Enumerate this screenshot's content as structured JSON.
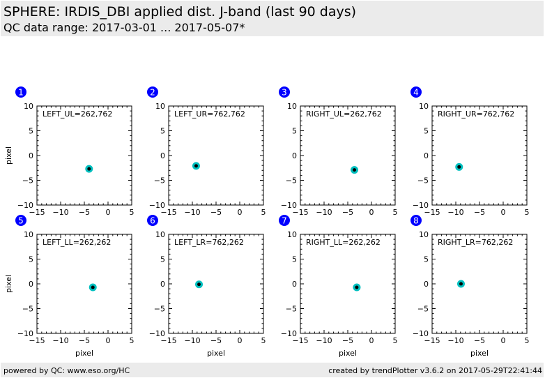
{
  "header": {
    "title": "SPHERE: IRDIS_DBI applied dist. J-band (last 90 days)",
    "subtitle": "QC data range: 2017-03-01 ... 2017-05-07*"
  },
  "footer": {
    "left": "powered by QC: www.eso.org/HC",
    "right": "created by trendPlotter v3.6.2 on 2017-05-29T22:41:44"
  },
  "colors": {
    "badge": "#0000ff",
    "marker_outer": "#00bfbf",
    "marker_inner": "#000000"
  },
  "chart_data": [
    {
      "type": "scatter",
      "badge": "1",
      "label": "LEFT_UL=262,762",
      "xlabel": "",
      "ylabel": "pixel",
      "xlim": [
        -15,
        5
      ],
      "ylim": [
        -10,
        10
      ],
      "xticks": [
        "−15",
        "−10",
        "−5",
        "0",
        "5"
      ],
      "yticks": [
        "10",
        "5",
        "0",
        "−5",
        "−10"
      ],
      "points": [
        [
          -4.0,
          -2.7
        ]
      ]
    },
    {
      "type": "scatter",
      "badge": "2",
      "label": "LEFT_UR=762,762",
      "xlabel": "",
      "ylabel": "",
      "xlim": [
        -15,
        5
      ],
      "ylim": [
        -10,
        10
      ],
      "xticks": [
        "−15",
        "−10",
        "−5",
        "0",
        "5"
      ],
      "yticks": [
        "10",
        "5",
        "0",
        "−5",
        "−10"
      ],
      "points": [
        [
          -9.2,
          -2.1
        ]
      ]
    },
    {
      "type": "scatter",
      "badge": "3",
      "label": "RIGHT_UL=262,762",
      "xlabel": "",
      "ylabel": "",
      "xlim": [
        -15,
        5
      ],
      "ylim": [
        -10,
        10
      ],
      "xticks": [
        "−15",
        "−10",
        "−5",
        "0",
        "5"
      ],
      "yticks": [
        "10",
        "5",
        "0",
        "−5",
        "−10"
      ],
      "points": [
        [
          -3.6,
          -2.9
        ]
      ]
    },
    {
      "type": "scatter",
      "badge": "4",
      "label": "RIGHT_UR=762,762",
      "xlabel": "",
      "ylabel": "",
      "xlim": [
        -15,
        5
      ],
      "ylim": [
        -10,
        10
      ],
      "xticks": [
        "−15",
        "−10",
        "−5",
        "0",
        "5"
      ],
      "yticks": [
        "10",
        "5",
        "0",
        "−5",
        "−10"
      ],
      "points": [
        [
          -9.3,
          -2.3
        ]
      ]
    },
    {
      "type": "scatter",
      "badge": "5",
      "label": "LEFT_LL=262,262",
      "xlabel": "pixel",
      "ylabel": "pixel",
      "xlim": [
        -15,
        5
      ],
      "ylim": [
        -10,
        10
      ],
      "xticks": [
        "−15",
        "−10",
        "−5",
        "0",
        "5"
      ],
      "yticks": [
        "10",
        "5",
        "0",
        "−5",
        "−10"
      ],
      "points": [
        [
          -3.2,
          -0.7
        ]
      ]
    },
    {
      "type": "scatter",
      "badge": "6",
      "label": "LEFT_LR=762,262",
      "xlabel": "pixel",
      "ylabel": "",
      "xlim": [
        -15,
        5
      ],
      "ylim": [
        -10,
        10
      ],
      "xticks": [
        "−15",
        "−10",
        "−5",
        "0",
        "5"
      ],
      "yticks": [
        "10",
        "5",
        "0",
        "−5",
        "−10"
      ],
      "points": [
        [
          -8.6,
          -0.1
        ]
      ]
    },
    {
      "type": "scatter",
      "badge": "7",
      "label": "RIGHT_LL=262,262",
      "xlabel": "pixel",
      "ylabel": "",
      "xlim": [
        -15,
        5
      ],
      "ylim": [
        -10,
        10
      ],
      "xticks": [
        "−15",
        "−10",
        "−5",
        "0",
        "5"
      ],
      "yticks": [
        "10",
        "5",
        "0",
        "−5",
        "−10"
      ],
      "points": [
        [
          -3.1,
          -0.7
        ]
      ]
    },
    {
      "type": "scatter",
      "badge": "8",
      "label": "RIGHT_LR=762,262",
      "xlabel": "pixel",
      "ylabel": "",
      "xlim": [
        -15,
        5
      ],
      "ylim": [
        -10,
        10
      ],
      "xticks": [
        "−15",
        "−10",
        "−5",
        "0",
        "5"
      ],
      "yticks": [
        "10",
        "5",
        "0",
        "−5",
        "−10"
      ],
      "points": [
        [
          -8.9,
          0.0
        ]
      ]
    }
  ]
}
